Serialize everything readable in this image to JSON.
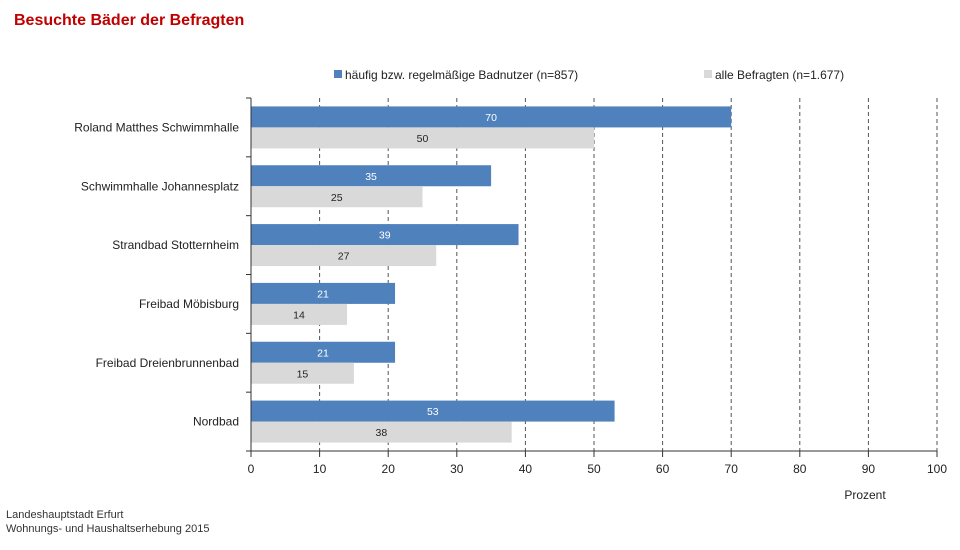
{
  "title": "Besuchte Bäder der Befragten",
  "source": {
    "line1": "Landeshauptstadt Erfurt",
    "line2": "Wohnungs- und Haushaltserhebung 2015"
  },
  "chart_data": {
    "type": "bar",
    "orientation": "horizontal",
    "categories": [
      "Roland Matthes Schwimmhalle",
      "Schwimmhalle Johannesplatz",
      "Strandbad Stotternheim",
      "Freibad Möbisburg",
      "Freibad Dreienbrunnenbad",
      "Nordbad"
    ],
    "series": [
      {
        "name": "häufig bzw. regelmäßige Badnutzer (n=857)",
        "color": "#4f81bd",
        "label_color": "#ffffff",
        "values": [
          70,
          35,
          39,
          21,
          21,
          53
        ]
      },
      {
        "name": "alle Befragten (n=1.677)",
        "color": "#d9d9d9",
        "label_color": "#222222",
        "values": [
          50,
          25,
          27,
          14,
          15,
          38
        ]
      }
    ],
    "xlabel": "Prozent",
    "xlim": [
      0,
      100
    ],
    "xticks": [
      0,
      10,
      20,
      30,
      40,
      50,
      60,
      70,
      80,
      90,
      100
    ],
    "grid": "vertical dashed",
    "legend_position": "top"
  }
}
